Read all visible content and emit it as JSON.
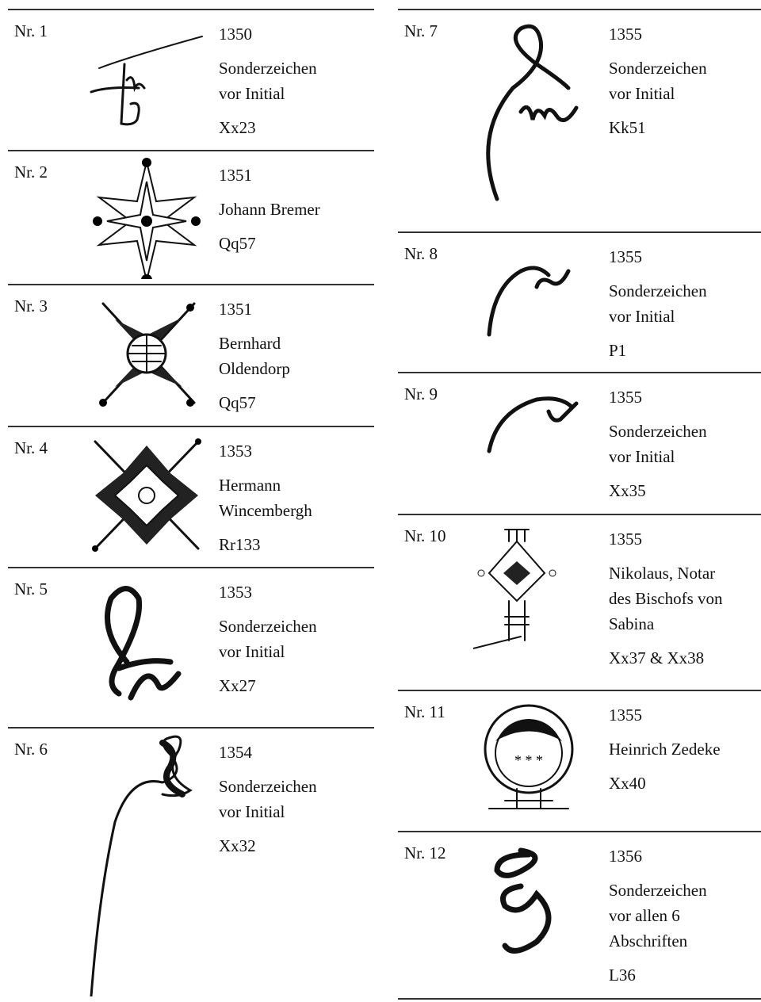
{
  "columns": [
    {
      "entries": [
        {
          "label": "Nr. 1",
          "year": "1350",
          "description": [
            "Sonderzeichen",
            "vor Initial"
          ],
          "code": "Xx23"
        },
        {
          "label": "Nr. 2",
          "year": "1351",
          "description": [
            "Johann Bremer"
          ],
          "code": "Qq57"
        },
        {
          "label": "Nr. 3",
          "year": "1351",
          "description": [
            "Bernhard",
            "Oldendorp"
          ],
          "code": "Qq57"
        },
        {
          "label": "Nr. 4",
          "year": "1353",
          "description": [
            "Hermann",
            "Wincembergh"
          ],
          "code": "Rr133"
        },
        {
          "label": "Nr. 5",
          "year": "1353",
          "description": [
            "Sonderzeichen",
            "vor Initial"
          ],
          "code": "Xx27"
        },
        {
          "label": "Nr. 6",
          "year": "1354",
          "description": [
            "Sonderzeichen",
            "vor Initial"
          ],
          "code": "Xx32"
        }
      ]
    },
    {
      "entries": [
        {
          "label": "Nr. 7",
          "year": "1355",
          "description": [
            "Sonderzeichen",
            "vor Initial"
          ],
          "code": "Kk51"
        },
        {
          "label": "Nr. 8",
          "year": "1355",
          "description": [
            "Sonderzeichen",
            "vor Initial"
          ],
          "code": "P1"
        },
        {
          "label": "Nr. 9",
          "year": "1355",
          "description": [
            "Sonderzeichen",
            "vor Initial"
          ],
          "code": "Xx35"
        },
        {
          "label": "Nr. 10",
          "year": "1355",
          "description": [
            "Nikolaus, Notar",
            "des Bischofs von",
            "Sabina"
          ],
          "code": "Xx37 & Xx38"
        },
        {
          "label": "Nr. 11",
          "year": "1355",
          "description": [
            "Heinrich Zedeke"
          ],
          "code": "Xx40"
        },
        {
          "label": "Nr. 12",
          "year": "1356",
          "description": [
            "Sonderzeichen",
            "vor allen 6",
            "Abschriften"
          ],
          "code": "L36"
        }
      ]
    }
  ]
}
